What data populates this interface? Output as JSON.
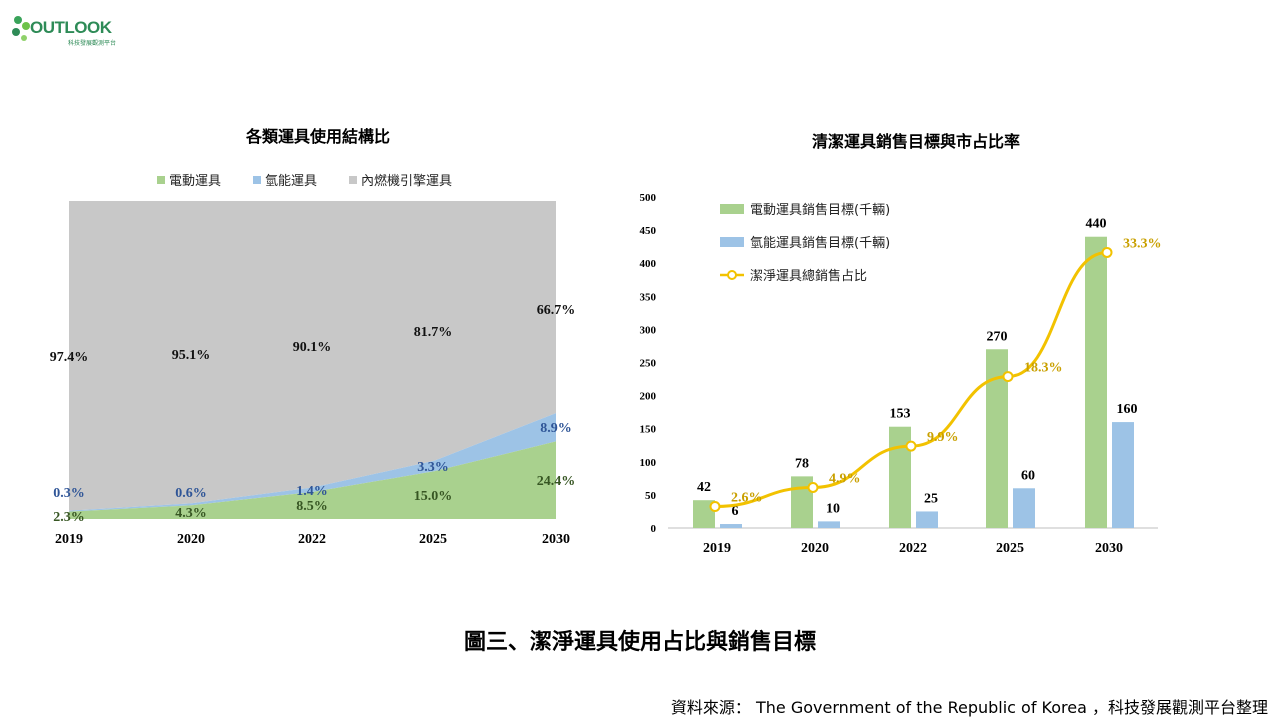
{
  "logo": {
    "wordmark": "OUTLOOK",
    "subtitle": "科技發展觀測平台"
  },
  "colors": {
    "green": "#a9d18e",
    "blue": "#9dc3e6",
    "gray": "#c8c8c8",
    "gold": "#f2c200",
    "blue_text": "#2f5597",
    "green_text": "#375623",
    "gold_text": "#c9a000"
  },
  "chart_data": [
    {
      "type": "area",
      "stacked": true,
      "percent": true,
      "title": "各類運具使用結構比",
      "legend_position": "top",
      "categories": [
        "2019",
        "2020",
        "2022",
        "2025",
        "2030"
      ],
      "series": [
        {
          "name": "電動運具",
          "values": [
            2.3,
            4.3,
            8.5,
            15.0,
            24.4
          ],
          "labels": [
            "2.3%",
            "4.3%",
            "8.5%",
            "15.0%",
            "24.4%"
          ]
        },
        {
          "name": "氫能運具",
          "values": [
            0.3,
            0.6,
            1.4,
            3.3,
            8.9
          ],
          "labels": [
            "0.3%",
            "0.6%",
            "1.4%",
            "3.3%",
            "8.9%"
          ]
        },
        {
          "name": "內燃機引擎運具",
          "values": [
            97.4,
            95.1,
            90.1,
            81.7,
            66.7
          ],
          "labels": [
            "97.4%",
            "95.1%",
            "90.1%",
            "81.7%",
            "66.7%"
          ]
        }
      ],
      "ylim": [
        0,
        100
      ]
    },
    {
      "type": "bar",
      "title": "清潔運具銷售目標與市占比率",
      "legend_position": "top-left",
      "categories": [
        "2019",
        "2020",
        "2022",
        "2025",
        "2030"
      ],
      "ylim": [
        0,
        500
      ],
      "yticks": [
        "0",
        "50",
        "100",
        "150",
        "200",
        "250",
        "300",
        "350",
        "400",
        "450",
        "500"
      ],
      "series": [
        {
          "name": "電動運具銷售目標(千輛)",
          "values": [
            42,
            78,
            153,
            270,
            440
          ],
          "labels": [
            "42",
            "78",
            "153",
            "270",
            "440"
          ]
        },
        {
          "name": "氫能運具銷售目標(千輛)",
          "values": [
            6,
            10,
            25,
            60,
            160
          ],
          "labels": [
            "6",
            "10",
            "25",
            "60",
            "160"
          ]
        }
      ],
      "line_series": {
        "name": "潔淨運具總銷售占比",
        "values": [
          2.6,
          4.9,
          9.9,
          18.3,
          33.3
        ],
        "labels": [
          "2.6%",
          "4.9%",
          "9.9%",
          "18.3%",
          "33.3%"
        ]
      }
    }
  ],
  "caption": "圖三、潔淨運具使用占比與銷售目標",
  "source": "資料來源： The Government of the Republic of Korea ，科技發展觀測平台整理"
}
